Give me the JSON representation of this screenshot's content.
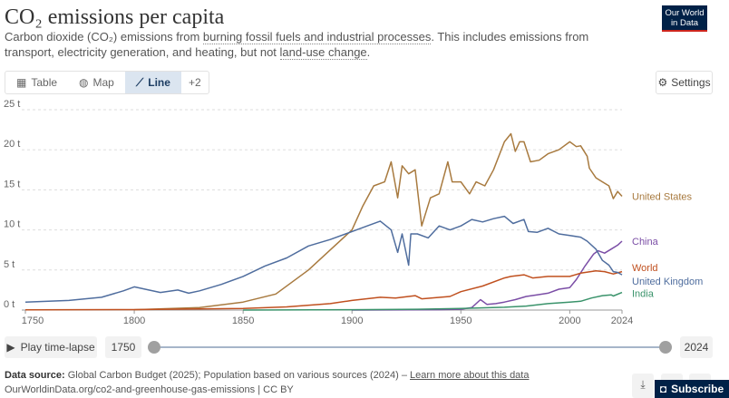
{
  "header": {
    "title": "CO₂ emissions per capita",
    "subtitle_pre": "Carbon dioxide (CO₂) emissions from ",
    "subtitle_link1": "burning fossil fuels and industrial processes",
    "subtitle_mid": ". This includes emissions from transport, electricity generation, and heating, but not ",
    "subtitle_link2": "land-use change",
    "subtitle_post": ".",
    "logo": "Our World in Data"
  },
  "tabs": [
    {
      "label": "Table",
      "icon": "table-icon"
    },
    {
      "label": "Map",
      "icon": "globe-icon"
    },
    {
      "label": "Line",
      "icon": "line-chart-icon",
      "active": true
    },
    {
      "label": "+2"
    }
  ],
  "settings_label": "Settings",
  "timeline": {
    "play_label": "Play time-lapse",
    "start": "1750",
    "end": "2024"
  },
  "footer": {
    "source_label": "Data source:",
    "source_text": " Global Carbon Budget (2025); Population based on various sources (2024) – ",
    "learn_more": "Learn more about this data",
    "url": "OurWorldinData.org/co2-and-greenhouse-gas-emissions | CC BY",
    "subscribe": "Subscribe"
  },
  "chart_data": {
    "type": "line",
    "xlim": [
      1750,
      2024
    ],
    "ylim": [
      0,
      25
    ],
    "grid": true,
    "yticks": [
      {
        "v": 0,
        "label": "0 t"
      },
      {
        "v": 5,
        "label": "5 t"
      },
      {
        "v": 10,
        "label": "10 t"
      },
      {
        "v": 15,
        "label": "15 t"
      },
      {
        "v": 20,
        "label": "20 t"
      },
      {
        "v": 25,
        "label": "25 t"
      }
    ],
    "xticks": [
      {
        "v": 1750,
        "label": "1750"
      },
      {
        "v": 1800,
        "label": "1800"
      },
      {
        "v": 1850,
        "label": "1850"
      },
      {
        "v": 1900,
        "label": "1900"
      },
      {
        "v": 1950,
        "label": "1950"
      },
      {
        "v": 2000,
        "label": "2000"
      },
      {
        "v": 2024,
        "label": "2024"
      }
    ],
    "series": [
      {
        "name": "United States",
        "color": "#a87a3f",
        "points": [
          [
            1800,
            0.05
          ],
          [
            1830,
            0.3
          ],
          [
            1850,
            1
          ],
          [
            1865,
            2
          ],
          [
            1880,
            5
          ],
          [
            1890,
            7.5
          ],
          [
            1900,
            10
          ],
          [
            1905,
            13
          ],
          [
            1910,
            15.5
          ],
          [
            1915,
            16
          ],
          [
            1918,
            18.5
          ],
          [
            1921,
            14
          ],
          [
            1923,
            18
          ],
          [
            1926,
            17
          ],
          [
            1929,
            17.5
          ],
          [
            1932,
            10.5
          ],
          [
            1936,
            14
          ],
          [
            1940,
            14.5
          ],
          [
            1944,
            18.5
          ],
          [
            1946,
            16
          ],
          [
            1950,
            16
          ],
          [
            1954,
            14.5
          ],
          [
            1957,
            16
          ],
          [
            1961,
            15.5
          ],
          [
            1965,
            17.5
          ],
          [
            1970,
            21
          ],
          [
            1973,
            22
          ],
          [
            1975,
            19.8
          ],
          [
            1977,
            21
          ],
          [
            1979,
            21
          ],
          [
            1982,
            18.5
          ],
          [
            1986,
            18.7
          ],
          [
            1990,
            19.5
          ],
          [
            1995,
            20
          ],
          [
            2000,
            21
          ],
          [
            2003,
            20.4
          ],
          [
            2005,
            20.5
          ],
          [
            2008,
            19.2
          ],
          [
            2009,
            17.7
          ],
          [
            2012,
            16.5
          ],
          [
            2015,
            16
          ],
          [
            2018,
            15.5
          ],
          [
            2020,
            13.9
          ],
          [
            2022,
            14.8
          ],
          [
            2024,
            14.2
          ]
        ],
        "label_v": 14.2
      },
      {
        "name": "China",
        "color": "#7b4ea6",
        "points": [
          [
            1900,
            0
          ],
          [
            1940,
            0.05
          ],
          [
            1950,
            0.1
          ],
          [
            1955,
            0.3
          ],
          [
            1959,
            1.3
          ],
          [
            1962,
            0.7
          ],
          [
            1966,
            0.8
          ],
          [
            1970,
            1.0
          ],
          [
            1975,
            1.3
          ],
          [
            1980,
            1.7
          ],
          [
            1985,
            1.9
          ],
          [
            1990,
            2.1
          ],
          [
            1995,
            2.6
          ],
          [
            2000,
            2.8
          ],
          [
            2003,
            3.8
          ],
          [
            2007,
            5.5
          ],
          [
            2011,
            7.0
          ],
          [
            2013,
            7.4
          ],
          [
            2016,
            7.1
          ],
          [
            2019,
            7.6
          ],
          [
            2022,
            8.1
          ],
          [
            2024,
            8.6
          ]
        ],
        "label_v": 8.6
      },
      {
        "name": "World",
        "color": "#c0501f",
        "points": [
          [
            1750,
            0.02
          ],
          [
            1800,
            0.06
          ],
          [
            1850,
            0.2
          ],
          [
            1870,
            0.4
          ],
          [
            1890,
            0.8
          ],
          [
            1900,
            1.2
          ],
          [
            1913,
            1.6
          ],
          [
            1920,
            1.5
          ],
          [
            1929,
            1.8
          ],
          [
            1932,
            1.4
          ],
          [
            1945,
            1.7
          ],
          [
            1950,
            2.3
          ],
          [
            1960,
            3.0
          ],
          [
            1970,
            4.0
          ],
          [
            1973,
            4.2
          ],
          [
            1979,
            4.4
          ],
          [
            1983,
            4.0
          ],
          [
            1990,
            4.2
          ],
          [
            2000,
            4.2
          ],
          [
            2005,
            4.6
          ],
          [
            2012,
            4.9
          ],
          [
            2016,
            4.8
          ],
          [
            2020,
            4.5
          ],
          [
            2024,
            4.8
          ]
        ],
        "label_v": 5.3
      },
      {
        "name": "United Kingdom",
        "color": "#4f6d9e",
        "points": [
          [
            1750,
            1.0
          ],
          [
            1770,
            1.2
          ],
          [
            1785,
            1.6
          ],
          [
            1795,
            2.4
          ],
          [
            1800,
            2.9
          ],
          [
            1805,
            2.6
          ],
          [
            1812,
            2.2
          ],
          [
            1820,
            2.5
          ],
          [
            1825,
            2.1
          ],
          [
            1830,
            2.4
          ],
          [
            1840,
            3.2
          ],
          [
            1850,
            4.2
          ],
          [
            1860,
            5.5
          ],
          [
            1870,
            6.5
          ],
          [
            1880,
            8.0
          ],
          [
            1890,
            8.8
          ],
          [
            1900,
            9.8
          ],
          [
            1907,
            10.5
          ],
          [
            1913,
            11.1
          ],
          [
            1918,
            10
          ],
          [
            1921,
            7.2
          ],
          [
            1923,
            9.5
          ],
          [
            1926,
            5.6
          ],
          [
            1927,
            9.5
          ],
          [
            1930,
            9.5
          ],
          [
            1935,
            9.0
          ],
          [
            1940,
            10.5
          ],
          [
            1945,
            10.0
          ],
          [
            1950,
            10.5
          ],
          [
            1955,
            11.3
          ],
          [
            1960,
            11.0
          ],
          [
            1965,
            11.4
          ],
          [
            1970,
            11.7
          ],
          [
            1974,
            10.8
          ],
          [
            1979,
            11.3
          ],
          [
            1981,
            9.8
          ],
          [
            1985,
            9.7
          ],
          [
            1990,
            10.2
          ],
          [
            1995,
            9.5
          ],
          [
            2000,
            9.3
          ],
          [
            2005,
            9.1
          ],
          [
            2008,
            8.6
          ],
          [
            2012,
            7.6
          ],
          [
            2015,
            6.2
          ],
          [
            2018,
            5.6
          ],
          [
            2020,
            4.8
          ],
          [
            2022,
            4.7
          ],
          [
            2024,
            4.4
          ]
        ],
        "label_v": 3.6
      },
      {
        "name": "India",
        "color": "#3a936b",
        "points": [
          [
            1850,
            0
          ],
          [
            1900,
            0.05
          ],
          [
            1930,
            0.1
          ],
          [
            1950,
            0.2
          ],
          [
            1970,
            0.35
          ],
          [
            1980,
            0.5
          ],
          [
            1990,
            0.8
          ],
          [
            2000,
            1.0
          ],
          [
            2005,
            1.1
          ],
          [
            2010,
            1.5
          ],
          [
            2015,
            1.8
          ],
          [
            2019,
            1.9
          ],
          [
            2020,
            1.75
          ],
          [
            2024,
            2.2
          ]
        ],
        "label_v": 2.1
      }
    ]
  }
}
